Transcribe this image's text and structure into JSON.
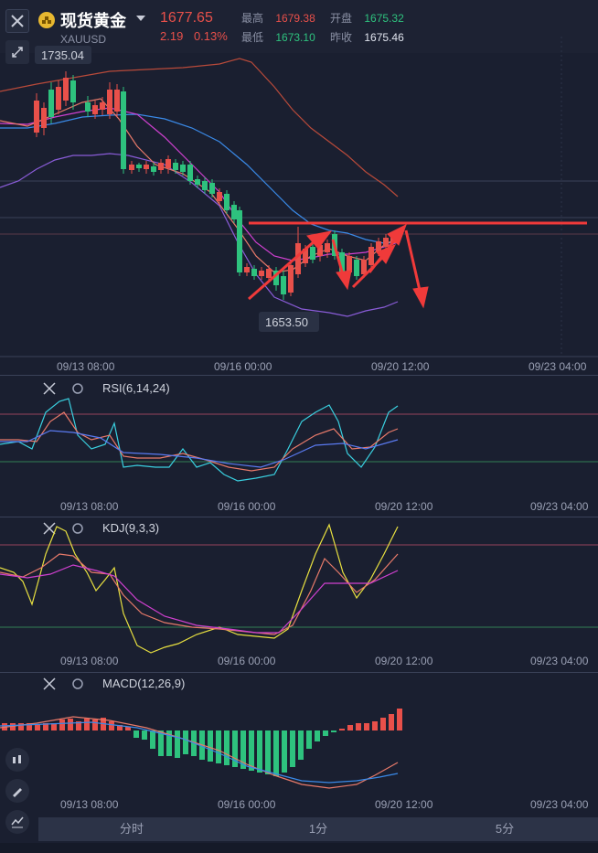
{
  "header": {
    "title": "现货黄金",
    "symbol": "XAUUSD",
    "price": "1677.65",
    "change": "2.19",
    "change_pct": "0.13%",
    "high_label": "最高",
    "high_value": "1679.38",
    "low_label": "最低",
    "low_value": "1673.10",
    "open_label": "开盘",
    "open_value": "1675.32",
    "prev_close_label": "昨收",
    "prev_close_value": "1675.46"
  },
  "main_chart": {
    "high_marker": "1735.04",
    "low_marker": "1653.50",
    "x_labels": [
      "09/13 08:00",
      "09/16 00:00",
      "09/20 12:00",
      "09/23 04:00"
    ]
  },
  "rsi": {
    "label": "RSI(6,14,24)",
    "x_labels": [
      "09/13 08:00",
      "09/16 00:00",
      "09/20 12:00",
      "09/23 04:00"
    ]
  },
  "kdj": {
    "label": "KDJ(9,3,3)",
    "x_labels": [
      "09/13 08:00",
      "09/16 00:00",
      "09/20 12:00",
      "09/23 04:00"
    ]
  },
  "macd": {
    "label": "MACD(12,26,9)",
    "x_labels": [
      "09/13 08:00",
      "09/16 00:00",
      "09/20 12:00",
      "09/23 04:00"
    ]
  },
  "tabs": [
    "分时",
    "1分",
    "5分"
  ],
  "colors": {
    "up": "#e8504a",
    "down": "#2ec27e",
    "bg": "#1a1f30"
  },
  "icons": [
    "close-icon",
    "gold-coin-icon",
    "chevron-down-icon",
    "collapse-icon",
    "settings-icon",
    "candles-icon",
    "draw-icon",
    "indicator-icon"
  ]
}
